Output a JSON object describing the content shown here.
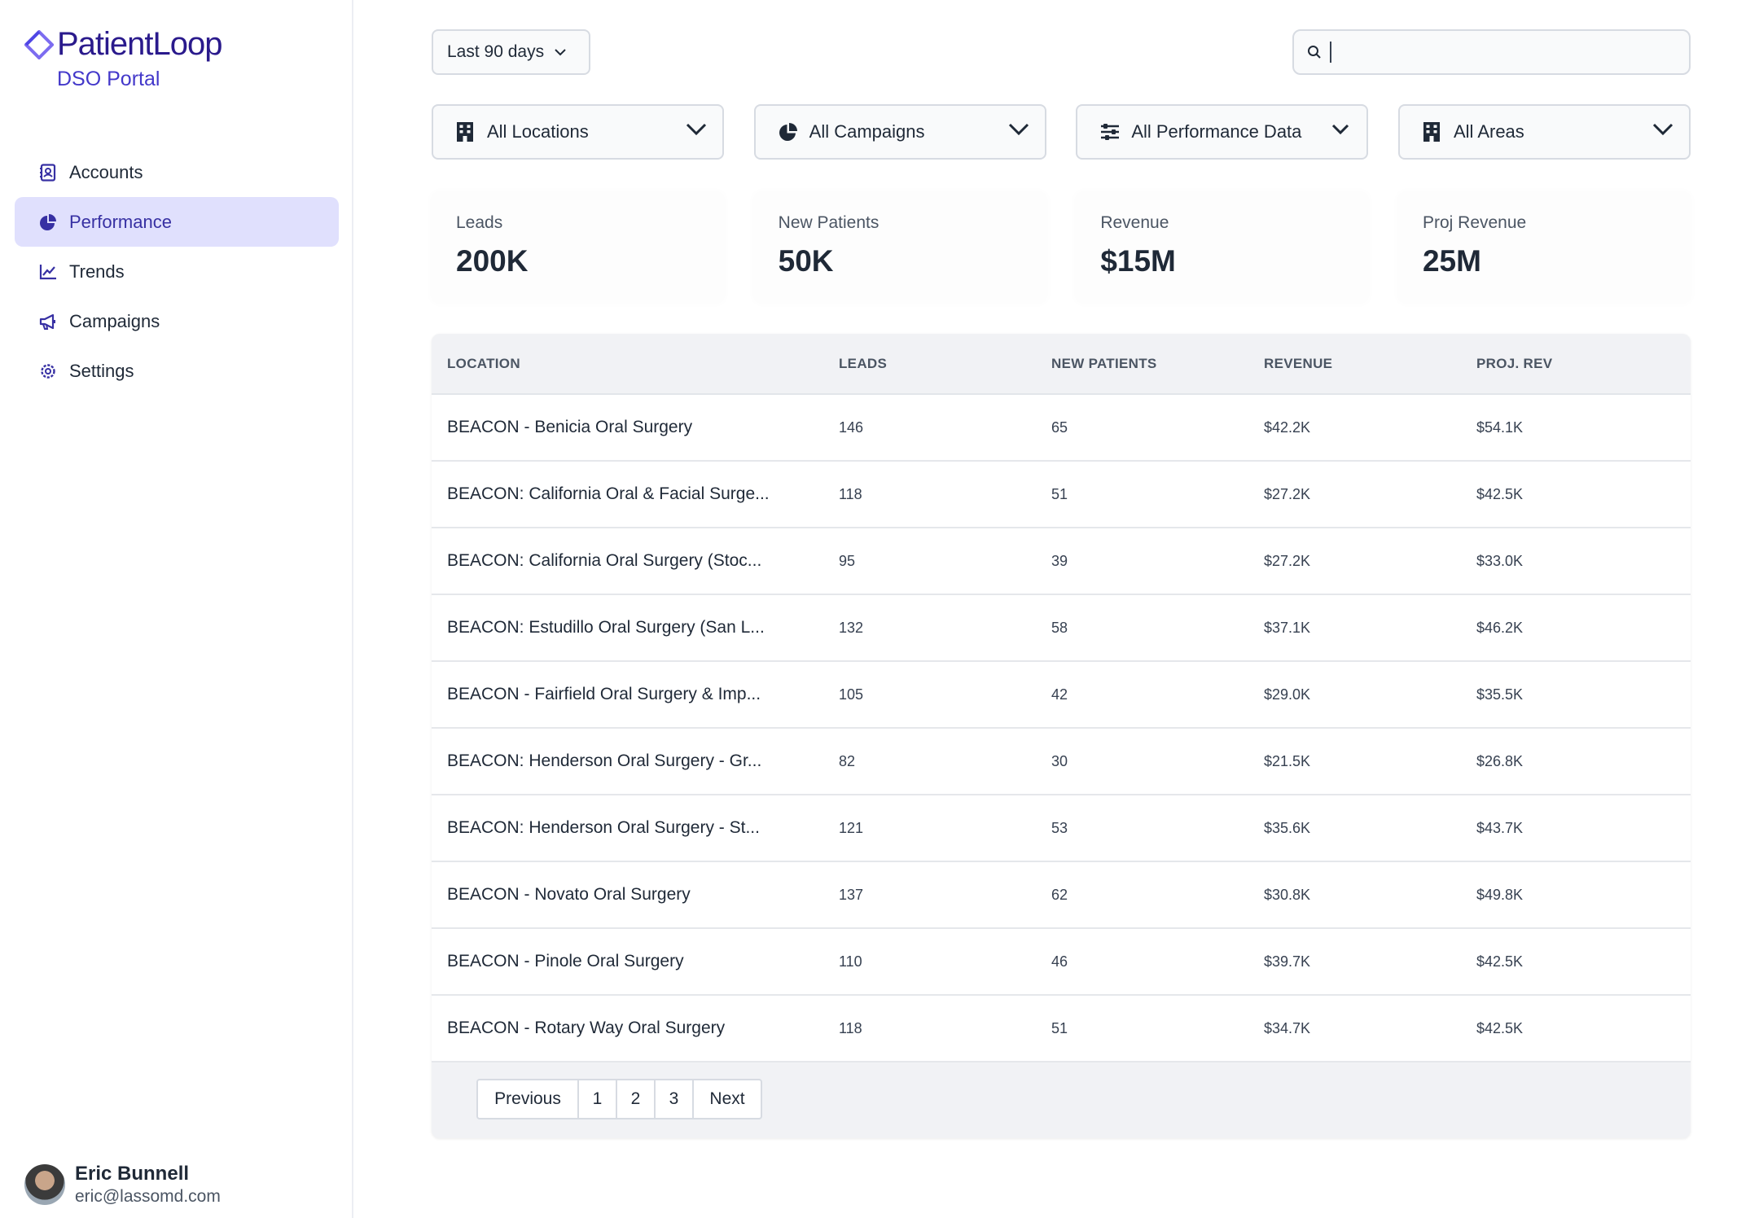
{
  "brand": {
    "name": "PatientLoop",
    "subtitle": "DSO Portal"
  },
  "nav": [
    {
      "label": "Accounts",
      "icon": "contact-book-icon",
      "active": false
    },
    {
      "label": "Performance",
      "icon": "pie-chart-icon",
      "active": true
    },
    {
      "label": "Trends",
      "icon": "line-chart-icon",
      "active": false
    },
    {
      "label": "Campaigns",
      "icon": "megaphone-icon",
      "active": false
    },
    {
      "label": "Settings",
      "icon": "gear-icon",
      "active": false
    }
  ],
  "user": {
    "name": "Eric Bunnell",
    "email": "eric@lassomd.com"
  },
  "date_range": {
    "label": "Last 90 days"
  },
  "search": {
    "value": "",
    "placeholder": ""
  },
  "filters": [
    {
      "label": "All Locations",
      "icon": "building-icon"
    },
    {
      "label": "All Campaigns",
      "icon": "pie-chart-icon"
    },
    {
      "label": "All Performance Data",
      "icon": "sliders-icon"
    },
    {
      "label": "All Areas",
      "icon": "building-icon"
    }
  ],
  "stats": [
    {
      "label": "Leads",
      "value": "200K"
    },
    {
      "label": "New Patients",
      "value": "50K"
    },
    {
      "label": "Revenue",
      "value": "$15M"
    },
    {
      "label": "Proj Revenue",
      "value": "25M"
    }
  ],
  "table": {
    "headers": [
      "LOCATION",
      "LEADS",
      "NEW PATIENTS",
      "REVENUE",
      "PROJ. REV"
    ],
    "rows": [
      [
        "BEACON - Benicia Oral Surgery",
        "146",
        "65",
        "$42.2K",
        "$54.1K"
      ],
      [
        "BEACON: California Oral & Facial Surge...",
        "118",
        "51",
        "$27.2K",
        "$42.5K"
      ],
      [
        "BEACON: California Oral Surgery (Stoc...",
        "95",
        "39",
        "$27.2K",
        "$33.0K"
      ],
      [
        "BEACON: Estudillo Oral Surgery (San L...",
        "132",
        "58",
        "$37.1K",
        "$46.2K"
      ],
      [
        "BEACON - Fairfield Oral Surgery & Imp...",
        "105",
        "42",
        "$29.0K",
        "$35.5K"
      ],
      [
        "BEACON: Henderson Oral Surgery - Gr...",
        "82",
        "30",
        "$21.5K",
        "$26.8K"
      ],
      [
        "BEACON: Henderson Oral Surgery - St...",
        "121",
        "53",
        "$35.6K",
        "$43.7K"
      ],
      [
        "BEACON - Novato Oral Surgery",
        "137",
        "62",
        "$30.8K",
        "$49.8K"
      ],
      [
        "BEACON - Pinole Oral Surgery",
        "110",
        "46",
        "$39.7K",
        "$42.5K"
      ],
      [
        "BEACON - Rotary Way Oral Surgery",
        "118",
        "51",
        "$34.7K",
        "$42.5K"
      ]
    ]
  },
  "pagination": {
    "previous": "Previous",
    "pages": [
      "1",
      "2",
      "3"
    ],
    "next": "Next"
  },
  "colors": {
    "accent": "#4338ca",
    "active_bg": "#e0e0fd",
    "brand": "#2a1a8c"
  }
}
